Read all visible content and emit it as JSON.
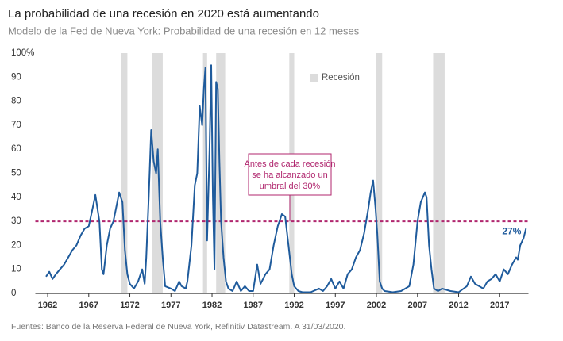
{
  "chart_data": {
    "type": "line",
    "title": "La probabilidad de una recesión en 2020 está aumentando",
    "subtitle": "Modelo de la Fed de Nueva York: Probabilidad de una recesión en 12 meses",
    "source": "Fuentes: Banco de la Reserva Federal de Nueva York, Refinitiv Datastream. A 31/03/2020.",
    "annotation": [
      "Antes de cada recesión",
      "se ha alcanzado un",
      "umbral del 30%"
    ],
    "end_label": "27%",
    "threshold": 30,
    "threshold_color": "#b0266e",
    "recession_label": "Recesión",
    "recession_color": "#dcdcdc",
    "recessions": [
      [
        1970.9,
        1971.7
      ],
      [
        1974.75,
        1976.0
      ],
      [
        1980.9,
        1981.4
      ],
      [
        1982.5,
        1983.6
      ],
      [
        1991.4,
        1992.0
      ],
      [
        2002.0,
        2002.7
      ],
      [
        2008.9,
        2010.3
      ]
    ],
    "xlim": [
      1960.5,
      2020.5
    ],
    "xticks": [
      1962,
      1967,
      1972,
      1977,
      1982,
      1987,
      1992,
      1997,
      2002,
      2007,
      2012,
      2017
    ],
    "ylim": [
      0,
      100
    ],
    "yticks": [
      0,
      10,
      20,
      30,
      40,
      50,
      60,
      70,
      80,
      90,
      {
        "value": 100,
        "label": "100%"
      }
    ],
    "grid": false,
    "series": [
      {
        "color": "#1f5b9c",
        "x": [
          1961.8,
          1962.2,
          1962.6,
          1963,
          1963.5,
          1964,
          1964.5,
          1965,
          1965.5,
          1966,
          1966.5,
          1967,
          1967.5,
          1967.8,
          1968.3,
          1968.6,
          1968.8,
          1969.2,
          1969.6,
          1970,
          1970.3,
          1970.7,
          1970.9,
          1971.1,
          1971.4,
          1971.7,
          1972,
          1972.5,
          1973,
          1973.5,
          1973.8,
          1974,
          1974.3,
          1974.6,
          1974.9,
          1975.2,
          1975.4,
          1975.7,
          1976,
          1976.3,
          1977,
          1977.5,
          1978,
          1978.3,
          1978.8,
          1979,
          1979.5,
          1979.9,
          1980.2,
          1980.5,
          1980.8,
          1981,
          1981.2,
          1981.4,
          1981.7,
          1981.9,
          1982.1,
          1982.3,
          1982.5,
          1982.7,
          1982.9,
          1983.1,
          1983.4,
          1983.7,
          1984,
          1984.5,
          1985,
          1985.5,
          1986,
          1986.5,
          1987,
          1987.5,
          1987.9,
          1988.5,
          1989,
          1989.5,
          1990,
          1990.5,
          1990.9,
          1991.3,
          1991.7,
          1992,
          1992.5,
          1993,
          1994,
          1995,
          1995.5,
          1996,
          1996.5,
          1997,
          1997.5,
          1998,
          1998.5,
          1999,
          1999.5,
          2000,
          2000.5,
          2001,
          2001.3,
          2001.6,
          2001.9,
          2002.1,
          2002.4,
          2002.7,
          2003,
          2004,
          2005,
          2006,
          2006.5,
          2007,
          2007.4,
          2007.9,
          2008.1,
          2008.4,
          2008.7,
          2009,
          2009.5,
          2010,
          2011,
          2012,
          2013,
          2013.5,
          2014,
          2015,
          2015.5,
          2016,
          2016.5,
          2017,
          2017.5,
          2018,
          2018.5,
          2019,
          2019.2,
          2019.5,
          2019.9,
          2020.2
        ],
        "values": [
          7,
          9,
          6,
          8,
          10,
          12,
          15,
          18,
          20,
          24,
          27,
          28,
          36,
          41,
          30,
          10,
          8,
          20,
          27,
          30,
          35,
          42,
          40,
          38,
          18,
          8,
          4,
          2,
          5,
          10,
          4,
          15,
          40,
          68,
          55,
          50,
          60,
          30,
          15,
          3,
          2,
          1,
          5,
          3,
          2,
          5,
          20,
          45,
          50,
          78,
          70,
          85,
          94,
          22,
          60,
          95,
          40,
          10,
          88,
          85,
          55,
          30,
          15,
          5,
          2,
          1,
          5,
          1,
          3,
          1,
          1,
          12,
          4,
          8,
          10,
          20,
          28,
          33,
          32,
          20,
          8,
          3,
          1,
          0.5,
          0.5,
          2,
          1,
          3,
          6,
          2,
          5,
          2,
          8,
          10,
          15,
          18,
          25,
          35,
          42,
          47,
          35,
          25,
          5,
          2,
          1,
          0.5,
          1,
          3,
          12,
          30,
          38,
          42,
          40,
          20,
          10,
          2,
          1,
          2,
          1,
          0.5,
          3,
          7,
          4,
          2,
          5,
          6,
          8,
          5,
          10,
          8,
          12,
          15,
          14,
          20,
          23,
          27
        ]
      }
    ]
  }
}
